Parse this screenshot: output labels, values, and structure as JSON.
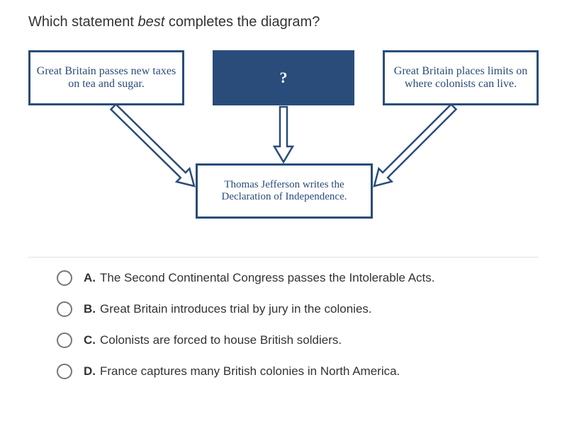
{
  "question_html": "Which statement <em>best</em> completes the diagram?",
  "diagram": {
    "border_color": "#2a4c7a",
    "mid_fill": "#2a4c7a",
    "mid_text_color": "#ffffff",
    "box_text_color": "#2a4c7a",
    "boxes": {
      "top_left": "Great Britain passes new taxes on tea and sugar.",
      "top_mid": "?",
      "top_right": "Great Britain places limits on where colonists can live.",
      "bottom": "Thomas Jefferson writes the Declaration of Independence."
    },
    "arrow_stroke": "#2a4c7a",
    "arrow_fill": "#ffffff"
  },
  "choices": [
    {
      "letter": "A.",
      "text": "The Second Continental Congress passes the Intolerable Acts."
    },
    {
      "letter": "B.",
      "text": "Great Britain introduces trial by jury in the colonies."
    },
    {
      "letter": "C.",
      "text": "Colonists are forced to house British soldiers."
    },
    {
      "letter": "D.",
      "text": "France captures many British colonies in North America."
    }
  ]
}
